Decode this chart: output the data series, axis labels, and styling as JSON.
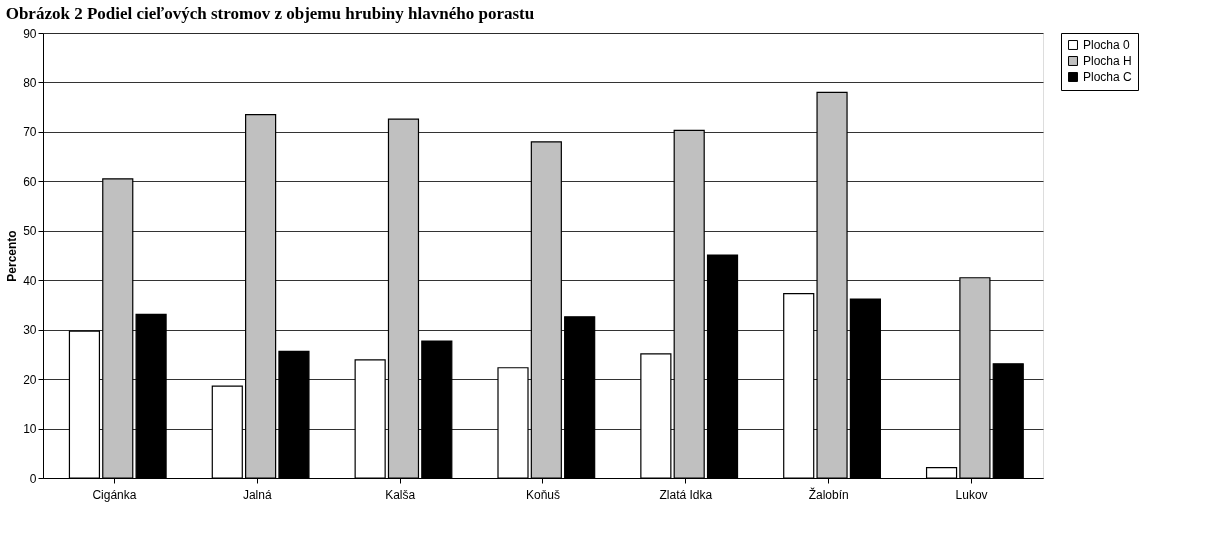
{
  "chart_data": {
    "type": "bar",
    "title": "Obrázok 2 Podiel cieľových stromov z objemu hrubiny hlavného porastu",
    "ylabel": "Percento",
    "categories": [
      "Cigánka",
      "Jalná",
      "Kalša",
      "Koňuš",
      "Zlatá Idka",
      "Žalobín",
      "Lukov"
    ],
    "series": [
      {
        "name": "Plocha 0",
        "color": "#ffffff",
        "values": [
          29.7,
          18.6,
          23.9,
          22.3,
          25.1,
          37.3,
          2.1
        ]
      },
      {
        "name": "Plocha H",
        "color": "#c0c0c0",
        "values": [
          60.5,
          73.5,
          72.6,
          68.0,
          70.3,
          78.0,
          40.5
        ]
      },
      {
        "name": "Plocha C",
        "color": "#000000",
        "values": [
          33.1,
          25.6,
          27.7,
          32.6,
          45.1,
          36.2,
          23.1
        ]
      }
    ],
    "ylim": [
      0,
      90
    ],
    "yticks": [
      0,
      10,
      20,
      30,
      40,
      50,
      60,
      70,
      80,
      90
    ],
    "grid": "y",
    "legend": "right"
  }
}
